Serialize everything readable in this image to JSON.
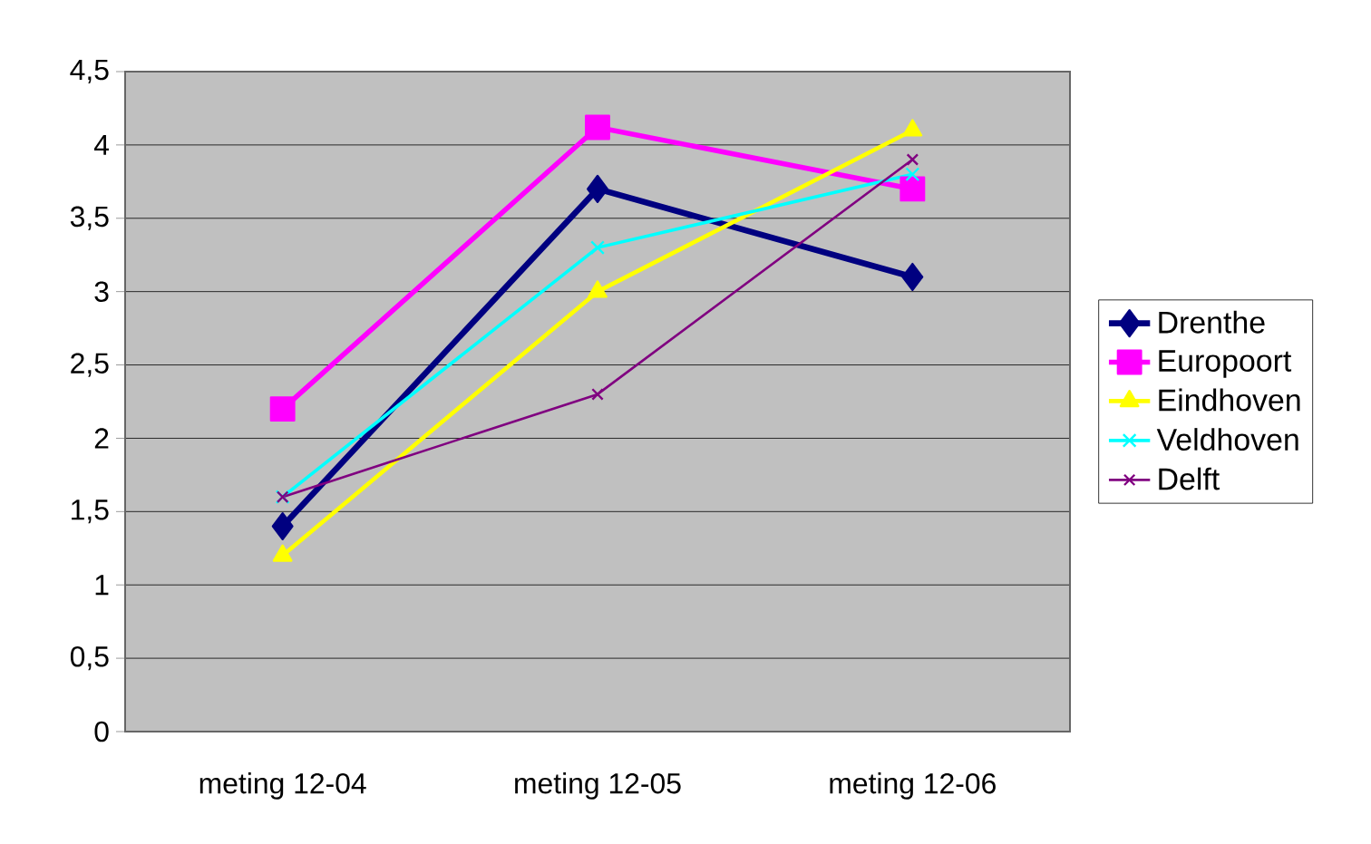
{
  "chart_data": {
    "type": "line",
    "categories": [
      "meting 12-04",
      "meting 12-05",
      "meting 12-06"
    ],
    "series": [
      {
        "name": "Drenthe",
        "color": "#000080",
        "marker": "diamond",
        "values": [
          1.4,
          3.7,
          3.1
        ]
      },
      {
        "name": "Europoort",
        "color": "#ff00ff",
        "marker": "square",
        "values": [
          2.2,
          4.12,
          3.7
        ]
      },
      {
        "name": "Eindhoven",
        "color": "#ffff00",
        "marker": "triangle",
        "values": [
          1.2,
          3.0,
          4.1
        ]
      },
      {
        "name": "Veldhoven",
        "color": "#00ffff",
        "marker": "cross",
        "values": [
          1.6,
          3.3,
          3.8
        ]
      },
      {
        "name": "Delft",
        "color": "#800080",
        "marker": "cross",
        "values": [
          1.6,
          2.3,
          3.9
        ]
      }
    ],
    "ylim": [
      0,
      4.5
    ],
    "yticks": [
      0,
      {
        "value": 0.5,
        "label": "0,5"
      },
      1,
      {
        "value": 1.5,
        "label": "1,5"
      },
      2,
      {
        "value": 2.5,
        "label": "2,5"
      },
      3,
      {
        "value": 3.5,
        "label": "3,5"
      },
      4,
      {
        "value": 4.5,
        "label": "4,5"
      }
    ],
    "grid": "y",
    "legend": "right"
  }
}
